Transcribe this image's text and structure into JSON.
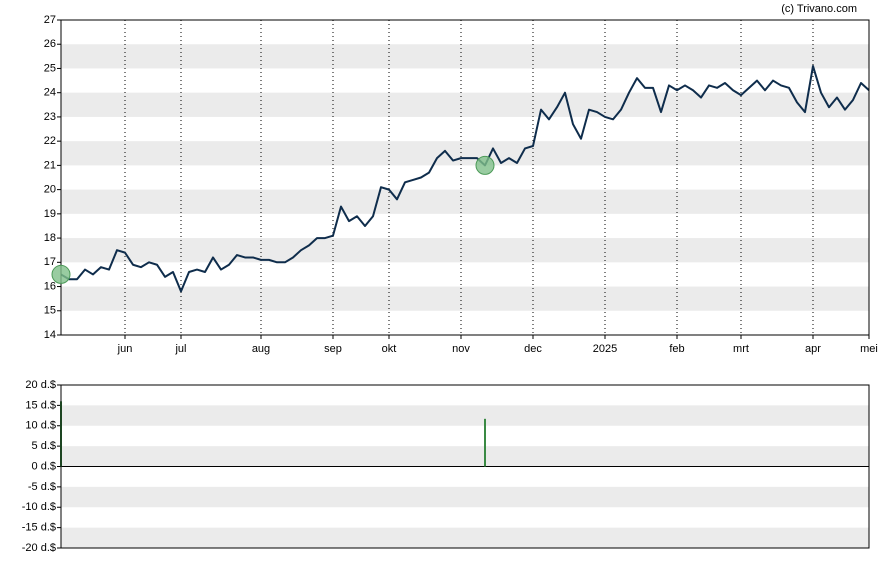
{
  "chart_data": [
    {
      "type": "line",
      "credit": "(c) Trivano.com",
      "categories": [
        null,
        null,
        null,
        null,
        null,
        null,
        null,
        null,
        "jun",
        null,
        null,
        null,
        null,
        null,
        null,
        "jul",
        null,
        null,
        null,
        null,
        null,
        null,
        null,
        null,
        null,
        "aug",
        null,
        null,
        null,
        null,
        null,
        null,
        null,
        null,
        "sep",
        null,
        null,
        null,
        null,
        null,
        null,
        "okt",
        null,
        null,
        null,
        null,
        null,
        null,
        null,
        null,
        "nov",
        null,
        null,
        null,
        null,
        null,
        null,
        null,
        null,
        "dec",
        null,
        null,
        null,
        null,
        null,
        null,
        null,
        null,
        "2025",
        null,
        null,
        null,
        null,
        null,
        null,
        null,
        null,
        "feb",
        null,
        null,
        null,
        null,
        null,
        null,
        null,
        "mrt",
        null,
        null,
        null,
        null,
        null,
        null,
        null,
        null,
        "apr",
        null,
        null,
        null,
        null,
        null,
        null,
        "mei"
      ],
      "series": [
        {
          "color": "#0f2d4c",
          "values": [
            16.5,
            16.3,
            16.3,
            16.7,
            16.5,
            16.8,
            16.7,
            17.5,
            17.4,
            16.9,
            16.8,
            17.0,
            16.9,
            16.4,
            16.6,
            15.8,
            16.6,
            16.7,
            16.6,
            17.2,
            16.7,
            16.9,
            17.3,
            17.2,
            17.2,
            17.1,
            17.1,
            17.0,
            17.0,
            17.2,
            17.5,
            17.7,
            18.0,
            18.0,
            18.1,
            19.3,
            18.7,
            18.9,
            18.5,
            18.9,
            20.1,
            20.0,
            19.6,
            20.3,
            20.4,
            20.5,
            20.7,
            21.3,
            21.6,
            21.2,
            21.3,
            21.3,
            21.3,
            21.0,
            21.7,
            21.1,
            21.3,
            21.1,
            21.7,
            21.8,
            23.3,
            22.9,
            23.4,
            24.0,
            22.7,
            22.1,
            23.3,
            23.2,
            23.0,
            22.9,
            23.3,
            24.0,
            24.6,
            24.2,
            24.2,
            23.2,
            24.3,
            24.1,
            24.3,
            24.1,
            23.8,
            24.3,
            24.2,
            24.4,
            24.1,
            23.9,
            24.2,
            24.5,
            24.1,
            24.5,
            24.3,
            24.2,
            23.6,
            23.2,
            25.1,
            24.0,
            23.4,
            23.8,
            23.3,
            23.7,
            24.4,
            24.1
          ]
        }
      ],
      "ylim": [
        14,
        27
      ],
      "yticks": [
        14,
        15,
        16,
        17,
        18,
        19,
        20,
        21,
        22,
        23,
        24,
        25,
        26,
        27
      ],
      "grid": true
    },
    {
      "type": "bar",
      "color": "#3a8a44",
      "values": [
        16,
        null,
        null,
        null,
        null,
        null,
        null,
        null,
        null,
        null,
        null,
        null,
        null,
        null,
        null,
        null,
        null,
        null,
        null,
        null,
        null,
        null,
        null,
        null,
        null,
        null,
        null,
        null,
        null,
        null,
        null,
        null,
        null,
        null,
        null,
        null,
        null,
        null,
        null,
        null,
        null,
        null,
        null,
        null,
        null,
        null,
        null,
        null,
        null,
        null,
        null,
        null,
        null,
        11.7,
        null,
        null,
        null,
        null,
        null,
        null,
        null,
        null,
        null,
        null,
        null,
        null,
        null,
        null,
        null,
        null,
        null,
        null,
        null,
        null,
        null,
        null,
        null,
        null,
        null,
        null,
        null,
        null,
        null,
        null,
        null,
        null,
        null,
        null,
        null,
        null,
        null,
        null,
        null,
        null,
        null,
        null,
        null,
        null,
        null,
        null,
        null,
        null
      ],
      "ylim": [
        -20,
        20
      ],
      "yticks": [
        {
          "value": -20,
          "label": "-20 d.$"
        },
        {
          "value": -15,
          "label": "-15 d.$"
        },
        {
          "value": -10,
          "label": "-10 d.$"
        },
        {
          "value": -5,
          "label": "-5 d.$"
        },
        {
          "value": 0,
          "label": "0 d.$"
        },
        {
          "value": 5,
          "label": "5 d.$"
        },
        {
          "value": 10,
          "label": "10 d.$"
        },
        {
          "value": 15,
          "label": "15 d.$"
        },
        {
          "value": 20,
          "label": "20 d.$"
        }
      ],
      "grid": true
    }
  ]
}
